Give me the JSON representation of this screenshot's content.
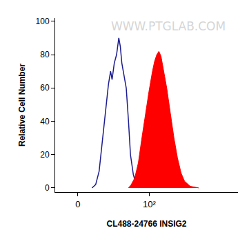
{
  "chart_data": {
    "type": "histogram",
    "x_label": "CL488-24766 INSIG2",
    "y_label": "Relative Cell Number",
    "annotations": [
      {
        "text": "WWW.PTGLAB.COM"
      }
    ],
    "log": "x",
    "grid": false,
    "xlim": [
      -16,
      1780
    ],
    "xticks": [
      0,
      {
        "value": 100,
        "label": "10²"
      }
    ],
    "ylim": [
      -2.5,
      102
    ],
    "yticks": [
      0,
      20,
      40,
      60,
      80,
      100
    ],
    "series": [
      {
        "type": "line",
        "color": "#1c1c8f",
        "x": [
          9.5,
          12.2,
          14.9,
          17.9,
          21.1,
          23.2,
          25.4,
          27.0,
          29.5,
          32.2,
          35.0,
          37.0,
          39.1,
          42.4,
          45.8,
          49.6,
          53.1,
          58.6,
          64.6,
          71.1
        ],
        "values": [
          0,
          2,
          10,
          30,
          50,
          62,
          70,
          65,
          75,
          80,
          90,
          85,
          75,
          68,
          60,
          40,
          20,
          8,
          2,
          0
        ]
      },
      {
        "type": "area",
        "color": "#ff0000",
        "x": [
          49.6,
          54.5,
          61.5,
          69.4,
          78.2,
          88.0,
          99,
          111,
          119,
          128,
          137,
          147,
          158,
          177,
          199,
          224,
          251,
          282,
          316,
          380,
          501
        ],
        "values": [
          0,
          2,
          6,
          15,
          30,
          45,
          58,
          70,
          76,
          80,
          82,
          79,
          72,
          60,
          45,
          30,
          18,
          9,
          4,
          1,
          0
        ]
      }
    ]
  }
}
